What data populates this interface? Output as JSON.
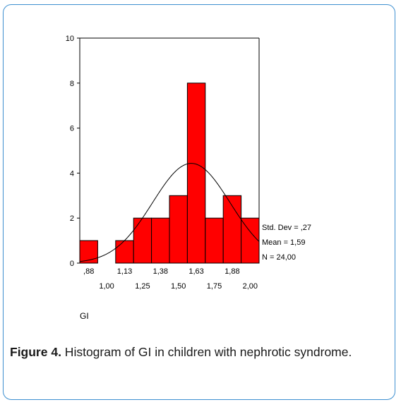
{
  "chart_data": {
    "type": "bar",
    "title": "",
    "xlabel": "GI",
    "ylabel": "",
    "categories": [
      ",88",
      "1,00",
      "1,13",
      "1,25",
      "1,38",
      "1,50",
      "1,63",
      "1,75",
      "1,88",
      "2,00"
    ],
    "x_centers": [
      0.875,
      1.0,
      1.125,
      1.25,
      1.375,
      1.5,
      1.625,
      1.75,
      1.875,
      2.0
    ],
    "values": [
      1,
      0,
      1,
      2,
      2,
      3,
      8,
      2,
      3,
      2
    ],
    "bin_width": 0.125,
    "ylim": [
      0,
      10
    ],
    "yticks": [
      "0",
      "2",
      "4",
      "6",
      "8",
      "10"
    ],
    "ytick_values": [
      0,
      2,
      4,
      6,
      8,
      10
    ],
    "bar_color": "#ff0000",
    "normal_curve": {
      "mean": 1.59,
      "std": 0.27,
      "n": 24
    },
    "stats": [
      "Std. Dev = ,27",
      "Mean = 1,59",
      "N = 24,00"
    ],
    "grid": false
  },
  "caption": {
    "label": "Figure 4.",
    "text": " Histogram of GI in children with nephrotic syndrome."
  }
}
